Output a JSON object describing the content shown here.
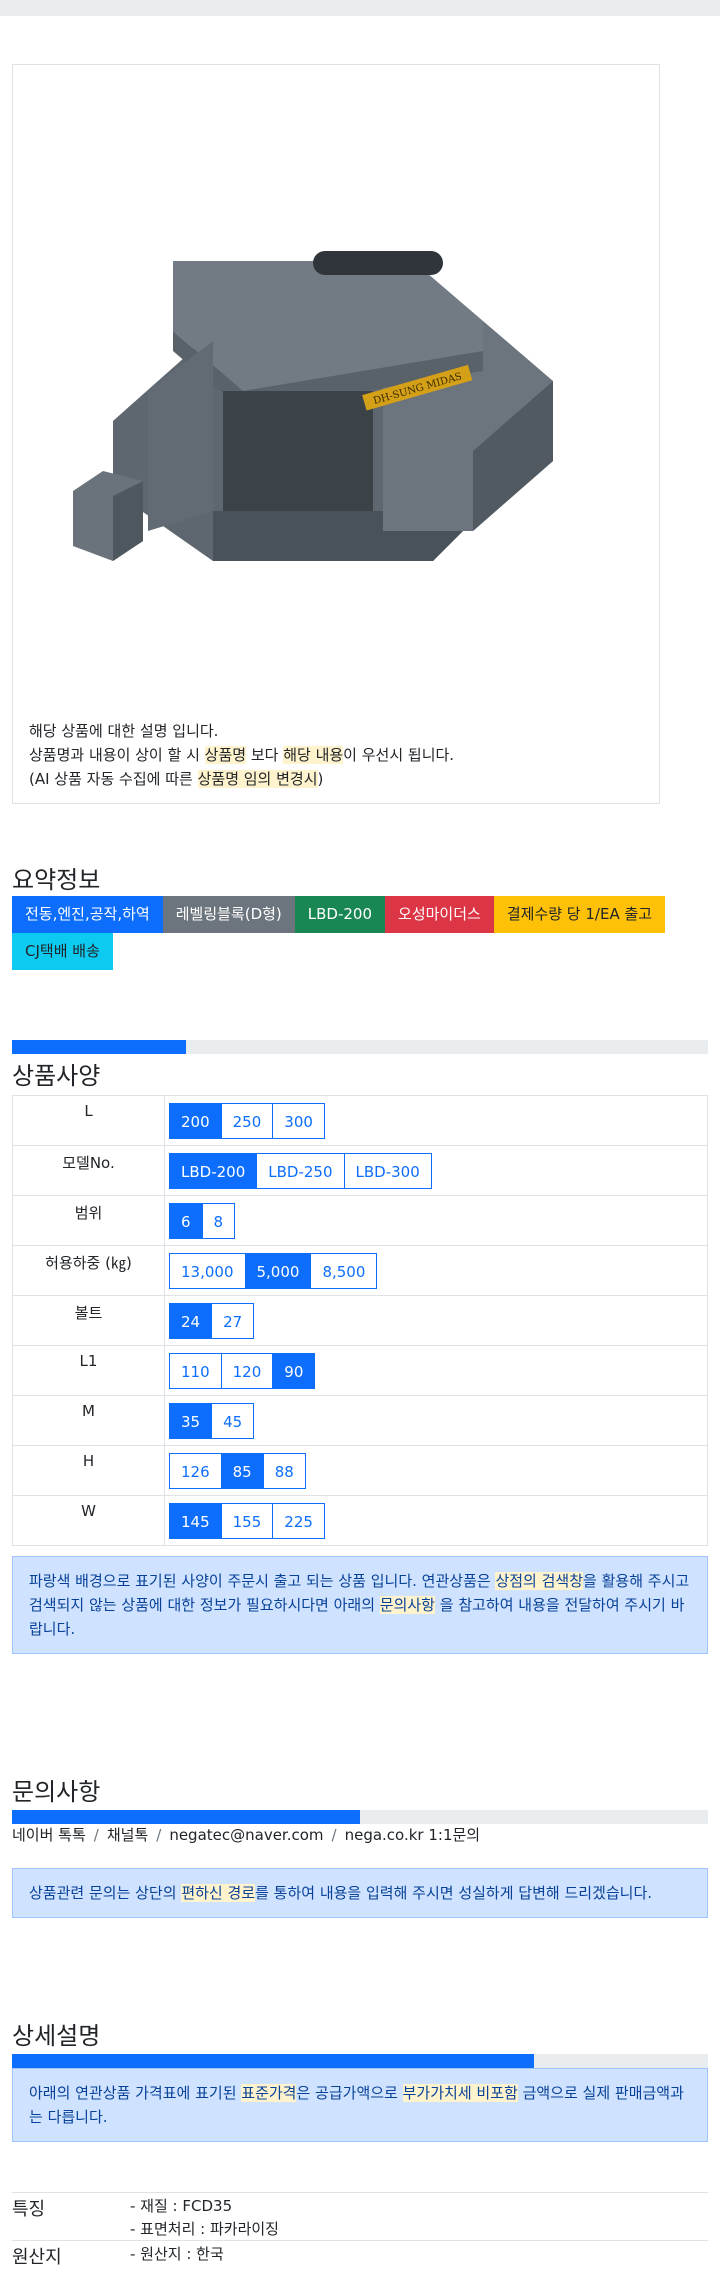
{
  "product": {
    "description_lines": {
      "l1": "해당 상품에 대한 설명 입니다.",
      "l2_a": "상품명과 내용이 상이 할 시 ",
      "l2_b": "상품명",
      "l2_c": " 보다 ",
      "l2_d": "해당 내용",
      "l2_e": "이 우선시 됩니다.",
      "l3_a": "(AI 상품 자동 수집에 따른 ",
      "l3_b": "상품명 임의 변경시",
      "l3_c": ")"
    },
    "plate_text": "DH-SUNG MIDAS"
  },
  "summary": {
    "title": "요약정보",
    "badges": [
      "전동,엔진,공작,하역",
      "레벨링블록(D형)",
      "LBD-200",
      "오성마이더스",
      "결제수량 당 1/EA 출고",
      "CJ택배 배송"
    ]
  },
  "spec": {
    "title": "상품사양",
    "progress_percent": 25,
    "rows": [
      {
        "label": "L",
        "options": [
          "200",
          "250",
          "300"
        ],
        "active": [
          0
        ]
      },
      {
        "label": "모델No.",
        "options": [
          "LBD-200",
          "LBD-250",
          "LBD-300"
        ],
        "active": [
          0
        ]
      },
      {
        "label": "범위",
        "options": [
          "6",
          "8"
        ],
        "active": [
          0
        ]
      },
      {
        "label": "허용하중 (㎏)",
        "options": [
          "13,000",
          "5,000",
          "8,500"
        ],
        "active": [
          1
        ]
      },
      {
        "label": "볼트",
        "options": [
          "24",
          "27"
        ],
        "active": [
          0
        ]
      },
      {
        "label": "L1",
        "options": [
          "110",
          "120",
          "90"
        ],
        "active": [
          2
        ]
      },
      {
        "label": "M",
        "options": [
          "35",
          "45"
        ],
        "active": [
          0
        ]
      },
      {
        "label": "H",
        "options": [
          "126",
          "85",
          "88"
        ],
        "active": [
          1
        ]
      },
      {
        "label": "W",
        "options": [
          "145",
          "155",
          "225"
        ],
        "active": [
          0
        ]
      }
    ],
    "notice": {
      "a": "파랑색 배경으로 표기된 사양이 주문시 출고 되는 상품 입니다. 연관상품은 ",
      "b": "상점의 검색창",
      "c": "을 활용해 주시고 검색되지 않는 상품에 대한 정보가 필요하시다면 아래의 ",
      "d": "문의사항",
      "e": " 을 참고하여 내용을 전달하여 주시기 바랍니다."
    }
  },
  "inquiry": {
    "title": "문의사항",
    "progress_percent": 50,
    "contacts": [
      "네이버 톡톡",
      "채널톡",
      "negatec@naver.com",
      "nega.co.kr 1:1문의"
    ],
    "notice": {
      "a": "상품관련 문의는 상단의 ",
      "b": "편하신 경로",
      "c": "를 통하여 내용을 입력해 주시면 성실하게 답변해 드리겠습니다."
    }
  },
  "detail": {
    "title": "상세설명",
    "progress_percent": 75,
    "notice": {
      "a": "아래의 연관상품 가격표에 표기된 ",
      "b": "표준가격",
      "c": "은 공급가액으로 ",
      "d": "부가가치세 비포함",
      "e": " 금액으로 실제 판매금액과는 다릅니다."
    },
    "features_label": "특징",
    "features": [
      "- 재질 : FCD35",
      "- 표면처리 : 파카라이징"
    ],
    "origin_label": "원산지",
    "origin": "- 원산지 : 한국"
  }
}
